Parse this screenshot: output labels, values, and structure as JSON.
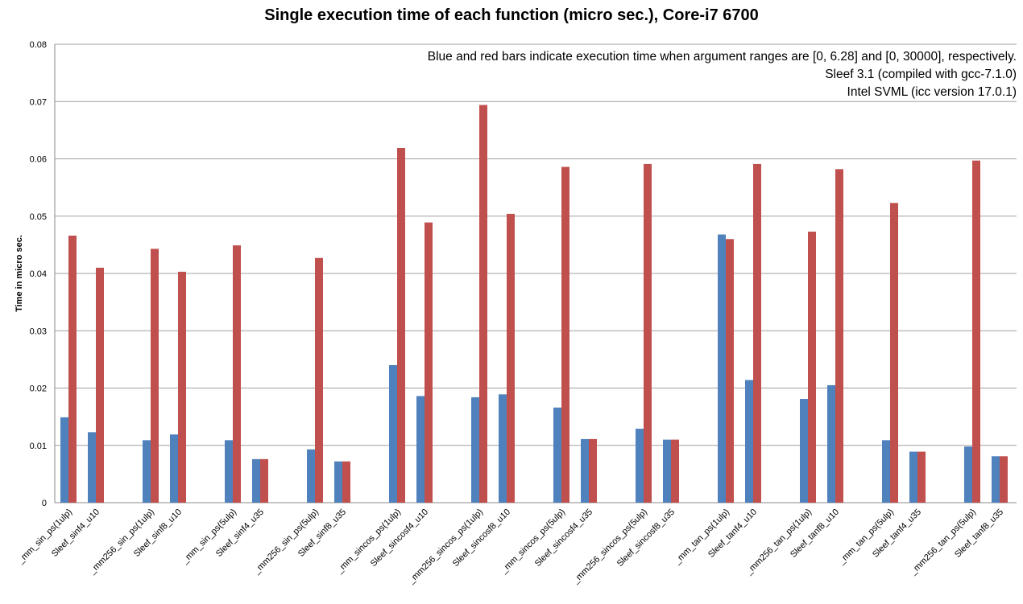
{
  "chart_data": {
    "type": "bar",
    "title": "Single execution time of each function (micro sec.), Core-i7 6700",
    "ylabel": "Time in micro sec.",
    "xlabel": "",
    "ylim": [
      0,
      0.08
    ],
    "yticks": [
      "0",
      "0.01",
      "0.02",
      "0.03",
      "0.04",
      "0.05",
      "0.06",
      "0.07",
      "0.08"
    ],
    "grid": true,
    "annotations": [
      "Blue and red bars indicate execution time when argument ranges are [0, 6.28] and [0, 30000], respectively.",
      "Sleef 3.1 (compiled with gcc-7.1.0)",
      "Intel SVML  (icc version 17.0.1)"
    ],
    "categories": [
      "_mm_sin_ps(1ulp)",
      "Sleef_sinf4_u10",
      "_mm256_sin_ps(1ulp)",
      "Sleef_sinf8_u10",
      "_mm_sin_ps(5ulp)",
      "Sleef_sinf4_u35",
      "_mm256_sin_ps(5ulp)",
      "Sleef_sinf8_u35",
      "_mm_sincos_ps(1ulp)",
      "Sleef_sincosf4_u10",
      "_mm256_sincos_ps(1ulp)",
      "Sleef_sincosf8_u10",
      "_mm_sincos_ps(5ulp)",
      "Sleef_sincosf4_u35",
      "_mm256_sincos_ps(5ulp)",
      "Sleef_sincosf8_u35",
      "_mm_tan_ps(1ulp)",
      "Sleef_tanf4_u10",
      "_mm256_tan_ps(1ulp)",
      "Sleef_tanf8_u10",
      "_mm_tan_ps(5ulp)",
      "Sleef_tanf4_u35",
      "_mm256_tan_ps(5ulp)",
      "Sleef_tanf8_u35"
    ],
    "series": [
      {
        "color": "#4f81bd",
        "values": [
          0.0149,
          0.0123,
          0.0109,
          0.0119,
          0.0109,
          0.0076,
          0.0093,
          0.0072,
          0.024,
          0.0186,
          0.0184,
          0.0189,
          0.0166,
          0.0111,
          0.0129,
          0.011,
          0.0468,
          0.0214,
          0.0181,
          0.0205,
          0.0109,
          0.0089,
          0.0098,
          0.0081
        ]
      },
      {
        "color": "#c0504d",
        "values": [
          0.0466,
          0.041,
          0.0443,
          0.0403,
          0.0449,
          0.0076,
          0.0427,
          0.0072,
          0.0619,
          0.0489,
          0.0694,
          0.0504,
          0.0586,
          0.0111,
          0.0591,
          0.011,
          0.046,
          0.0591,
          0.0473,
          0.0582,
          0.0523,
          0.0089,
          0.0597,
          0.0081
        ]
      }
    ]
  }
}
